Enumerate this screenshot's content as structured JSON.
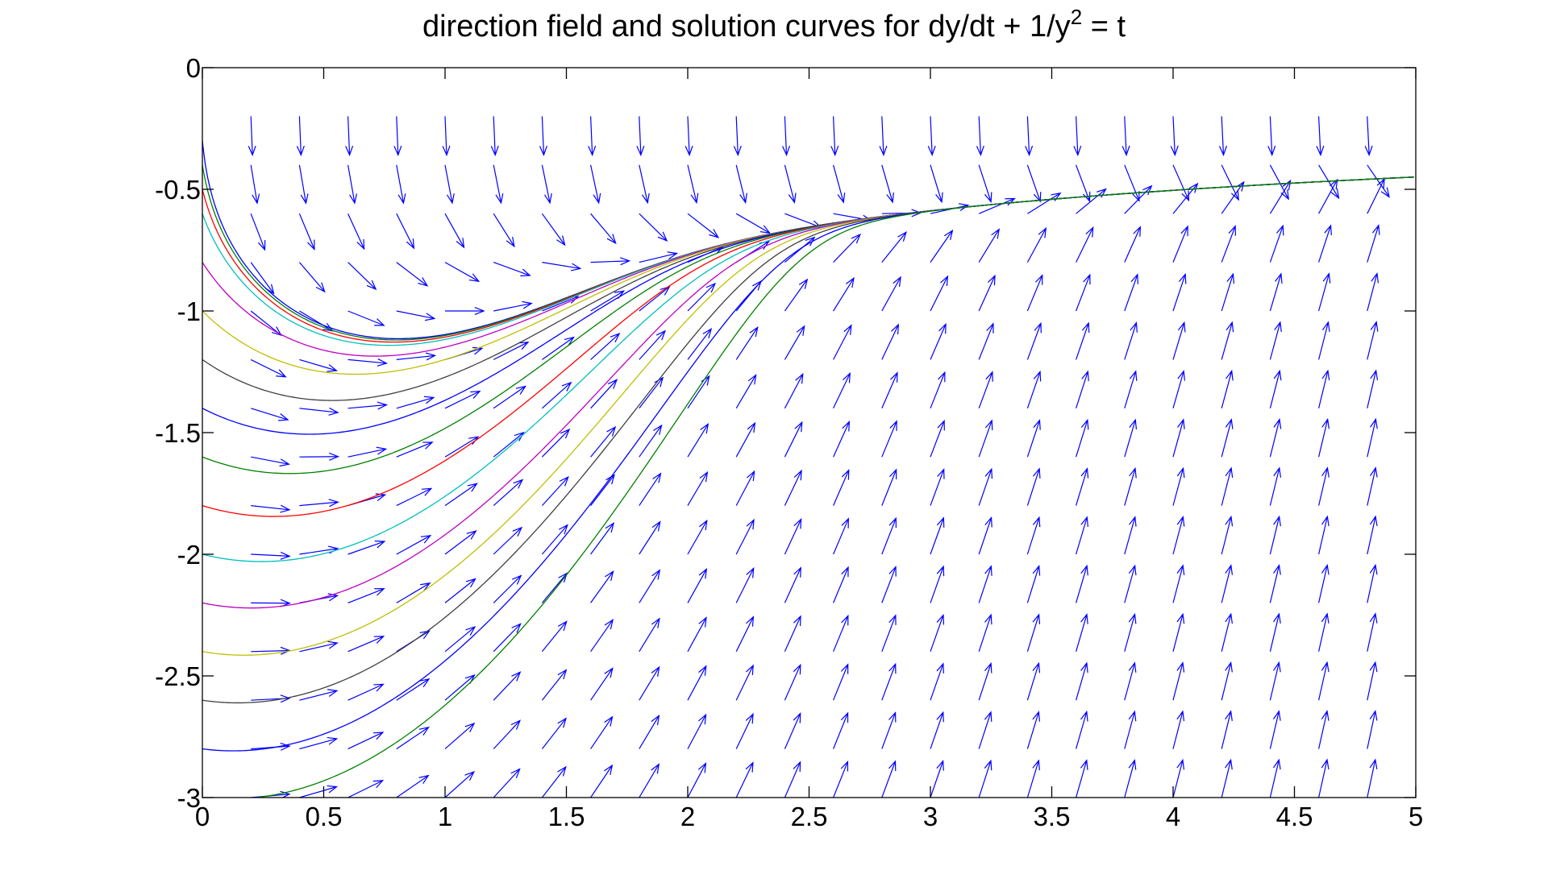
{
  "title": {
    "prefix": "direction field and solution curves for dy/dt + 1/y",
    "superscript": "2",
    "suffix": " = t"
  },
  "colors": {
    "field_arrows": "#0000ff",
    "axes": "#000000",
    "background": "#ffffff"
  },
  "chart_data": {
    "type": "line",
    "equation": "dy/dt = t - 1/y^2",
    "xlim": [
      0,
      5
    ],
    "ylim": [
      -3,
      0
    ],
    "xticks": [
      "0",
      "0.5",
      "1",
      "1.5",
      "2",
      "2.5",
      "3",
      "3.5",
      "4",
      "4.5",
      "5"
    ],
    "yticks": [
      "0",
      "-0.5",
      "-1",
      "-1.5",
      "-2",
      "-2.5",
      "-3"
    ],
    "grid": false,
    "legend": "none",
    "direction_field": {
      "t_values": [
        0.2,
        0.4,
        0.6,
        0.8,
        1.0,
        1.2,
        1.4,
        1.6,
        1.8,
        2.0,
        2.2,
        2.4,
        2.6,
        2.8,
        3.0,
        3.2,
        3.4,
        3.6,
        3.8,
        4.0,
        4.2,
        4.4,
        4.6,
        4.8
      ],
      "y_values": [
        -0.2,
        -0.4,
        -0.6,
        -0.8,
        -1.0,
        -1.2,
        -1.4,
        -1.6,
        -1.8,
        -2.0,
        -2.2,
        -2.4,
        -2.6,
        -2.8,
        -3.0
      ],
      "color": "#0000ff"
    },
    "solution_curves": {
      "t_start": 0,
      "t_end": 5,
      "initial_values": [
        -0.3,
        -0.4,
        -0.5,
        -0.6,
        -0.8,
        -1.0,
        -1.2,
        -1.4,
        -1.6,
        -1.8,
        -2.0,
        -2.2,
        -2.4,
        -2.6,
        -2.8,
        -3.0
      ],
      "colors": [
        "#0000ff",
        "#008000",
        "#ff0000",
        "#00bfbf",
        "#bf00bf",
        "#bfbf00",
        "#404040",
        "#0000ff",
        "#008000",
        "#ff0000",
        "#00bfbf",
        "#bf00bf",
        "#bfbf00",
        "#404040",
        "#0000ff",
        "#008000"
      ]
    }
  }
}
